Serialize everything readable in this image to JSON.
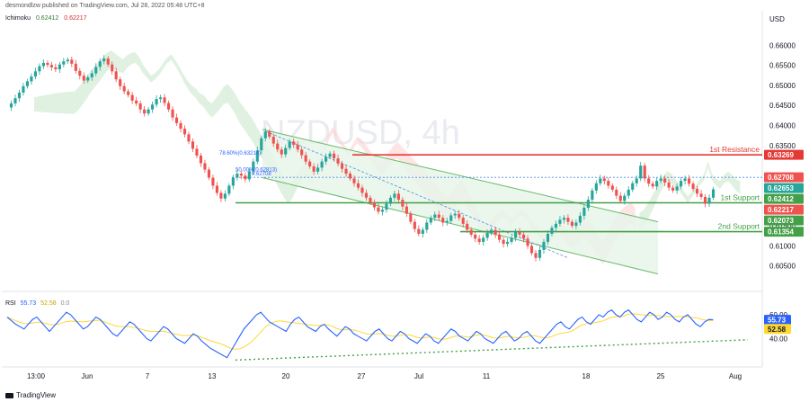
{
  "header": {
    "publisher_note": "desmondlzw published on TradingView.com, Jul 28, 2022 05:48 UTC+8"
  },
  "indicator_label": {
    "name": "Ichimoku",
    "value1": "0.62412",
    "value2": "0.62217"
  },
  "rsi_label": {
    "name": "RSI",
    "value1": "55.73",
    "value2": "52.58",
    "value3": "0.0"
  },
  "footer": {
    "brand": "TradingView"
  },
  "colors": {
    "bull": "#26a69a",
    "bear": "#ef5350",
    "resistance": "#e53935",
    "support": "#43a047",
    "channel_fill": "#e8f5e9",
    "channel_line": "#66bb6a",
    "cloud_green": "#c8e6c9",
    "cloud_red": "#ffcdd2",
    "rsi_line": "#2962ff",
    "rsi_ma": "#fdd835",
    "rsi_trend": "#43a047"
  },
  "chart_data": {
    "type": "candlestick",
    "symbol_watermark": "NZDUSD, 4h",
    "currency": "USD",
    "ylim": [
      0.6,
      0.665
    ],
    "y_ticks": [
      "0.66000",
      "0.65500",
      "0.65000",
      "0.64500",
      "0.64000",
      "0.63500",
      "0.61500",
      "0.61000",
      "0.60500"
    ],
    "x_ticks": [
      "13:00",
      "Jun",
      "7",
      "13",
      "20",
      "27",
      "Jul",
      "11",
      "18",
      "25",
      "Aug"
    ],
    "levels": [
      {
        "label": "1st Resistance",
        "value": 0.63269,
        "price_tag": "0.63269",
        "color": "#e53935"
      },
      {
        "label": "1st Support",
        "value": 0.62073,
        "price_tag": "0.62073",
        "color": "#43a047"
      },
      {
        "label": "2nd Support",
        "value": 0.61354,
        "price_tag": "0.61354",
        "color": "#43a047"
      }
    ],
    "price_tags": [
      {
        "value": 0.62708,
        "text": "0.62708",
        "color": "#ef5350"
      },
      {
        "value": 0.62653,
        "text": "0.62653",
        "color": "#26a69a"
      },
      {
        "value": 0.62412,
        "text": "0.62412",
        "color": "#43a047"
      },
      {
        "value": 0.62217,
        "text": "0.62217",
        "color": "#ef5350"
      }
    ],
    "fib_labels": [
      {
        "text": "78.60%(0.63214)",
        "value": 0.6323
      },
      {
        "text": "50.00%(0.62813)",
        "value": 0.6281
      },
      {
        "text": "0.62708",
        "value": 0.62708
      }
    ],
    "closes": [
      0.6445,
      0.6455,
      0.6468,
      0.6482,
      0.6498,
      0.651,
      0.6522,
      0.6535,
      0.6548,
      0.6556,
      0.6551,
      0.6545,
      0.654,
      0.6552,
      0.656,
      0.6564,
      0.6554,
      0.6536,
      0.6524,
      0.6512,
      0.652,
      0.653,
      0.6546,
      0.656,
      0.6567,
      0.6552,
      0.6535,
      0.6515,
      0.6498,
      0.6485,
      0.6476,
      0.6462,
      0.6455,
      0.644,
      0.643,
      0.644,
      0.6452,
      0.6466,
      0.647,
      0.6456,
      0.644,
      0.642,
      0.6406,
      0.6392,
      0.6378,
      0.636,
      0.6342,
      0.6325,
      0.6306,
      0.629,
      0.627,
      0.625,
      0.6232,
      0.6218,
      0.623,
      0.625,
      0.627,
      0.628,
      0.6275,
      0.6266,
      0.6286,
      0.631,
      0.6338,
      0.6368,
      0.6385,
      0.6372,
      0.6355,
      0.634,
      0.6328,
      0.6344,
      0.636,
      0.6352,
      0.634,
      0.6326,
      0.631,
      0.6298,
      0.6285,
      0.6295,
      0.631,
      0.6322,
      0.633,
      0.6318,
      0.6305,
      0.6292,
      0.628,
      0.6268,
      0.6256,
      0.6245,
      0.6232,
      0.622,
      0.6208,
      0.6196,
      0.6185,
      0.619,
      0.6205,
      0.622,
      0.623,
      0.6215,
      0.6198,
      0.618,
      0.616,
      0.6142,
      0.613,
      0.614,
      0.6158,
      0.617,
      0.6178,
      0.617,
      0.6158,
      0.6162,
      0.6176,
      0.618,
      0.617,
      0.6155,
      0.614,
      0.6128,
      0.6118,
      0.611,
      0.612,
      0.6132,
      0.614,
      0.6128,
      0.6115,
      0.6105,
      0.611,
      0.612,
      0.6135,
      0.6128,
      0.6118,
      0.61,
      0.6082,
      0.607,
      0.609,
      0.611,
      0.613,
      0.6145,
      0.6155,
      0.6165,
      0.617,
      0.616,
      0.615,
      0.6158,
      0.6175,
      0.6195,
      0.6215,
      0.6238,
      0.6256,
      0.6268,
      0.6262,
      0.625,
      0.624,
      0.6225,
      0.6212,
      0.6225,
      0.624,
      0.6256,
      0.6268,
      0.63,
      0.6268,
      0.6255,
      0.6248,
      0.6262,
      0.6268,
      0.6258,
      0.6245,
      0.6238,
      0.6248,
      0.6262,
      0.6268,
      0.6255,
      0.6242,
      0.623,
      0.6222,
      0.6205,
      0.622,
      0.6241
    ],
    "rsi": {
      "ylim": [
        20,
        75
      ],
      "y_ticks": [
        "60.00",
        "40.00"
      ],
      "price_tags": [
        {
          "value": 55.73,
          "text": "55.73",
          "color": "#2962ff"
        },
        {
          "value": 52.58,
          "text": "52.58",
          "color": "#fdd835"
        }
      ],
      "values": [
        58,
        55,
        52,
        50,
        48,
        52,
        56,
        58,
        54,
        50,
        46,
        50,
        54,
        58,
        62,
        60,
        56,
        52,
        48,
        50,
        54,
        58,
        56,
        52,
        48,
        44,
        42,
        46,
        50,
        54,
        52,
        48,
        44,
        40,
        38,
        42,
        46,
        50,
        48,
        44,
        40,
        38,
        36,
        40,
        44,
        42,
        38,
        35,
        32,
        30,
        28,
        26,
        24,
        30,
        36,
        42,
        48,
        52,
        56,
        60,
        62,
        58,
        54,
        52,
        50,
        48,
        46,
        52,
        56,
        58,
        54,
        50,
        48,
        46,
        50,
        52,
        48,
        45,
        42,
        46,
        50,
        48,
        44,
        42,
        40,
        38,
        42,
        46,
        48,
        44,
        40,
        38,
        42,
        46,
        44,
        40,
        38,
        36,
        40,
        44,
        42,
        38,
        36,
        40,
        44,
        48,
        46,
        42,
        40,
        38,
        42,
        46,
        44,
        40,
        38,
        36,
        40,
        44,
        46,
        42,
        38,
        40,
        44,
        46,
        42,
        38,
        36,
        40,
        44,
        48,
        52,
        54,
        50,
        48,
        52,
        56,
        58,
        54,
        52,
        56,
        60,
        58,
        62,
        64,
        60,
        58,
        62,
        64,
        60,
        56,
        54,
        58,
        62,
        60,
        56,
        58,
        62,
        60,
        56,
        54,
        58,
        60,
        56,
        52,
        50,
        54,
        56,
        55.73
      ]
    }
  }
}
